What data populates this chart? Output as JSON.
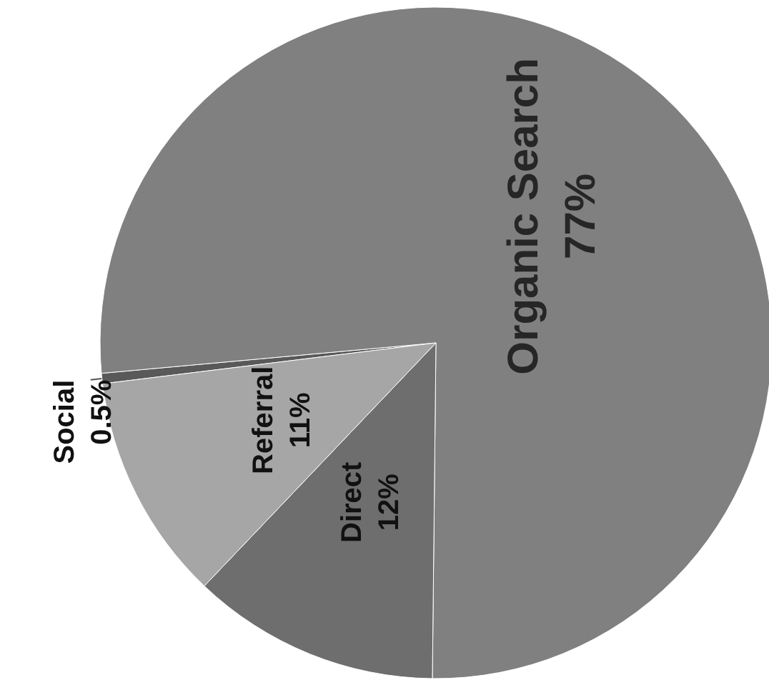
{
  "chart_data": {
    "type": "pie",
    "categories": [
      "Social",
      "Organic Search",
      "Direct",
      "Referral"
    ],
    "values": [
      0.5,
      77,
      12,
      11
    ],
    "colors": [
      "#595959",
      "#808080",
      "#6e6e6e",
      "#a6a6a6"
    ],
    "value_labels": [
      "0.5%",
      "77%",
      "12%",
      "11%"
    ]
  }
}
